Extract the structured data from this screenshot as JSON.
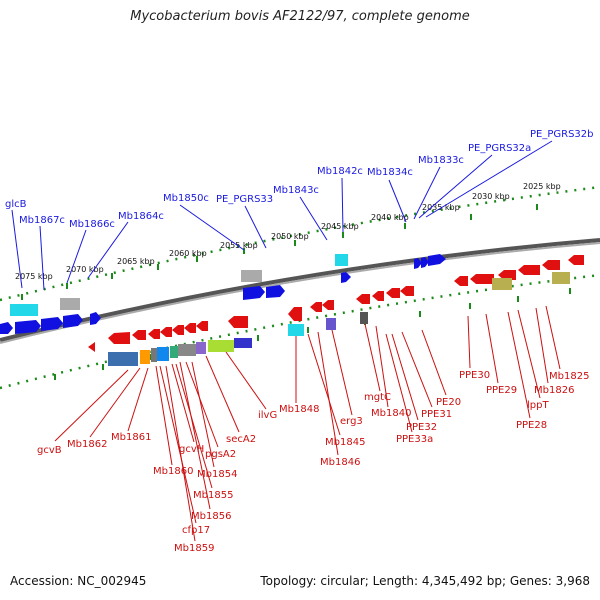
{
  "title": "Mycobacterium bovis AF2122/97, complete genome",
  "footer": {
    "accession": "Accession: NC_002945",
    "summary": "Topology: circular; Length: 4,345,492 bp; Genes: 3,968"
  },
  "colors": {
    "forward_gene": "#1010e0",
    "reverse_gene": "#e01010",
    "backbone": "#777777",
    "tick": "#1a8a1a",
    "blue_label": "#1a1ae0",
    "red_label": "#cc1010"
  },
  "scale_labels": [
    "2075 kbp",
    "2070 kbp",
    "2065 kbp",
    "2060 kbp",
    "2055 kbp",
    "2050 kbp",
    "2045 kbp",
    "2040 kbp",
    "2035 kbp",
    "2030 kbp",
    "2025 kbp"
  ],
  "forward_labels": [
    "glcB",
    "Mb1867c",
    "Mb1866c",
    "Mb1864c",
    "Mb1850c",
    "PE_PGRS33",
    "Mb1843c",
    "Mb1842c",
    "Mb1834c",
    "Mb1833c",
    "PE_PGRS32a",
    "PE_PGRS32b"
  ],
  "reverse_labels": [
    "gcvB",
    "Mb1862",
    "Mb1861",
    "Mb1860",
    "cfp17",
    "Mb1859",
    "gcvH",
    "Mb1855",
    "Mb1856",
    "pgsA2",
    "Mb1854",
    "secA2",
    "ilvG",
    "Mb1848",
    "Mb1845",
    "Mb1846",
    "erg3",
    "mgtC",
    "Mb1840",
    "PPE32",
    "PPE33a",
    "PPE31",
    "PE20",
    "PPE30",
    "PPE29",
    "PPE28",
    "lppT",
    "Mb1826",
    "Mb1825"
  ]
}
